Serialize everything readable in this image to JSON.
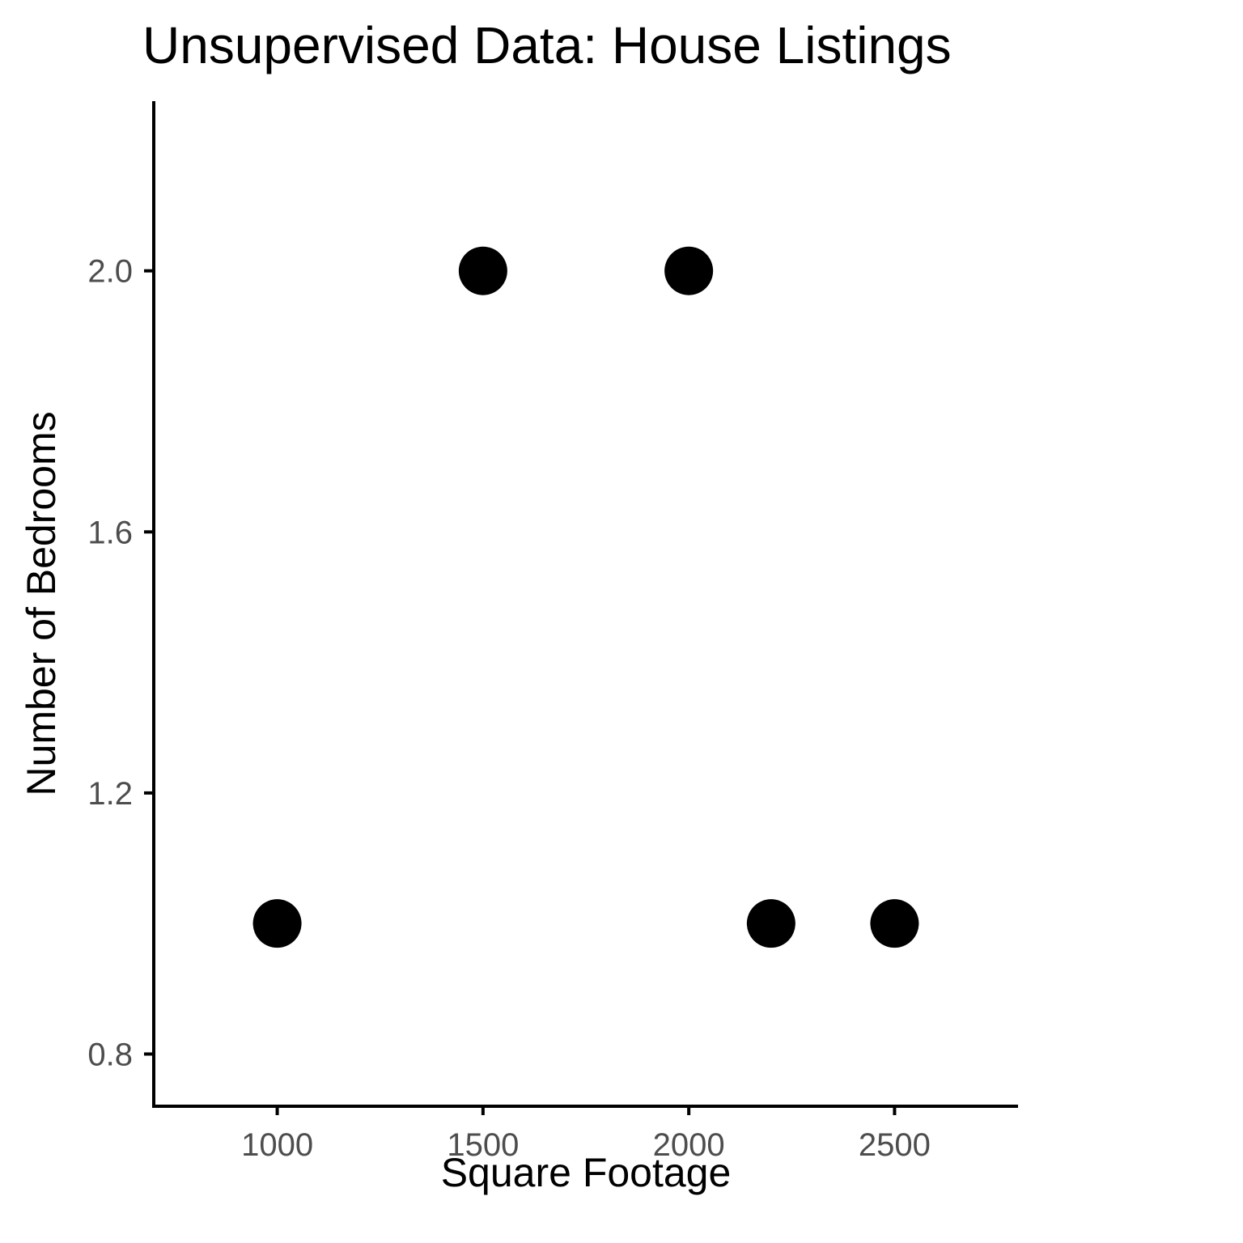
{
  "chart_data": {
    "type": "scatter",
    "title": "Unsupervised Data: House Listings",
    "xlabel": "Square Footage",
    "ylabel": "Number of Bedrooms",
    "xlim": [
      700,
      2800
    ],
    "ylim": [
      0.72,
      2.26
    ],
    "xticks": [
      1000,
      1500,
      2000,
      2500
    ],
    "xtick_labels": [
      "1000",
      "1500",
      "2000",
      "2500"
    ],
    "yticks": [
      0.8,
      1.2,
      1.6,
      2.0
    ],
    "ytick_labels": [
      "0.8",
      "1.2",
      "1.6",
      "2.0"
    ],
    "grid": false,
    "legend": "none",
    "point_color": "#000000",
    "points": [
      {
        "x": 1000,
        "y": 1
      },
      {
        "x": 1500,
        "y": 2
      },
      {
        "x": 2000,
        "y": 2
      },
      {
        "x": 2200,
        "y": 1
      },
      {
        "x": 2500,
        "y": 1
      }
    ]
  }
}
